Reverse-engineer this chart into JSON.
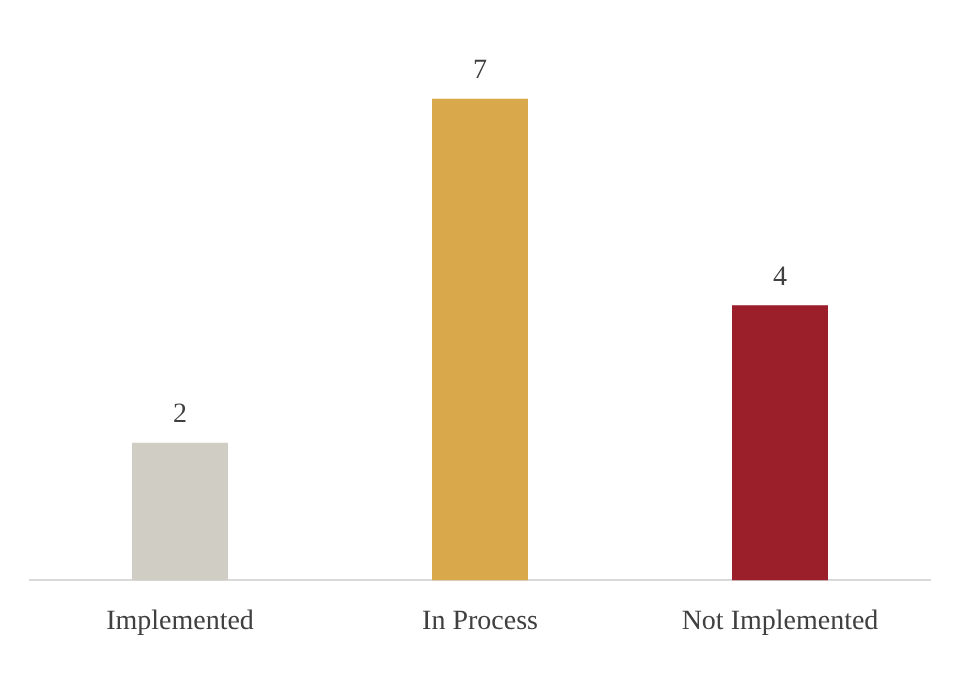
{
  "chart_data": {
    "type": "bar",
    "categories": [
      "Implemented",
      "In Process",
      "Not Implemented"
    ],
    "values": [
      2,
      7,
      4
    ],
    "colors": [
      "#d0cec4",
      "#d9a84a",
      "#9b1e2b"
    ],
    "grid": false,
    "legend": false,
    "tick_labels": "x",
    "data_labels": true
  }
}
